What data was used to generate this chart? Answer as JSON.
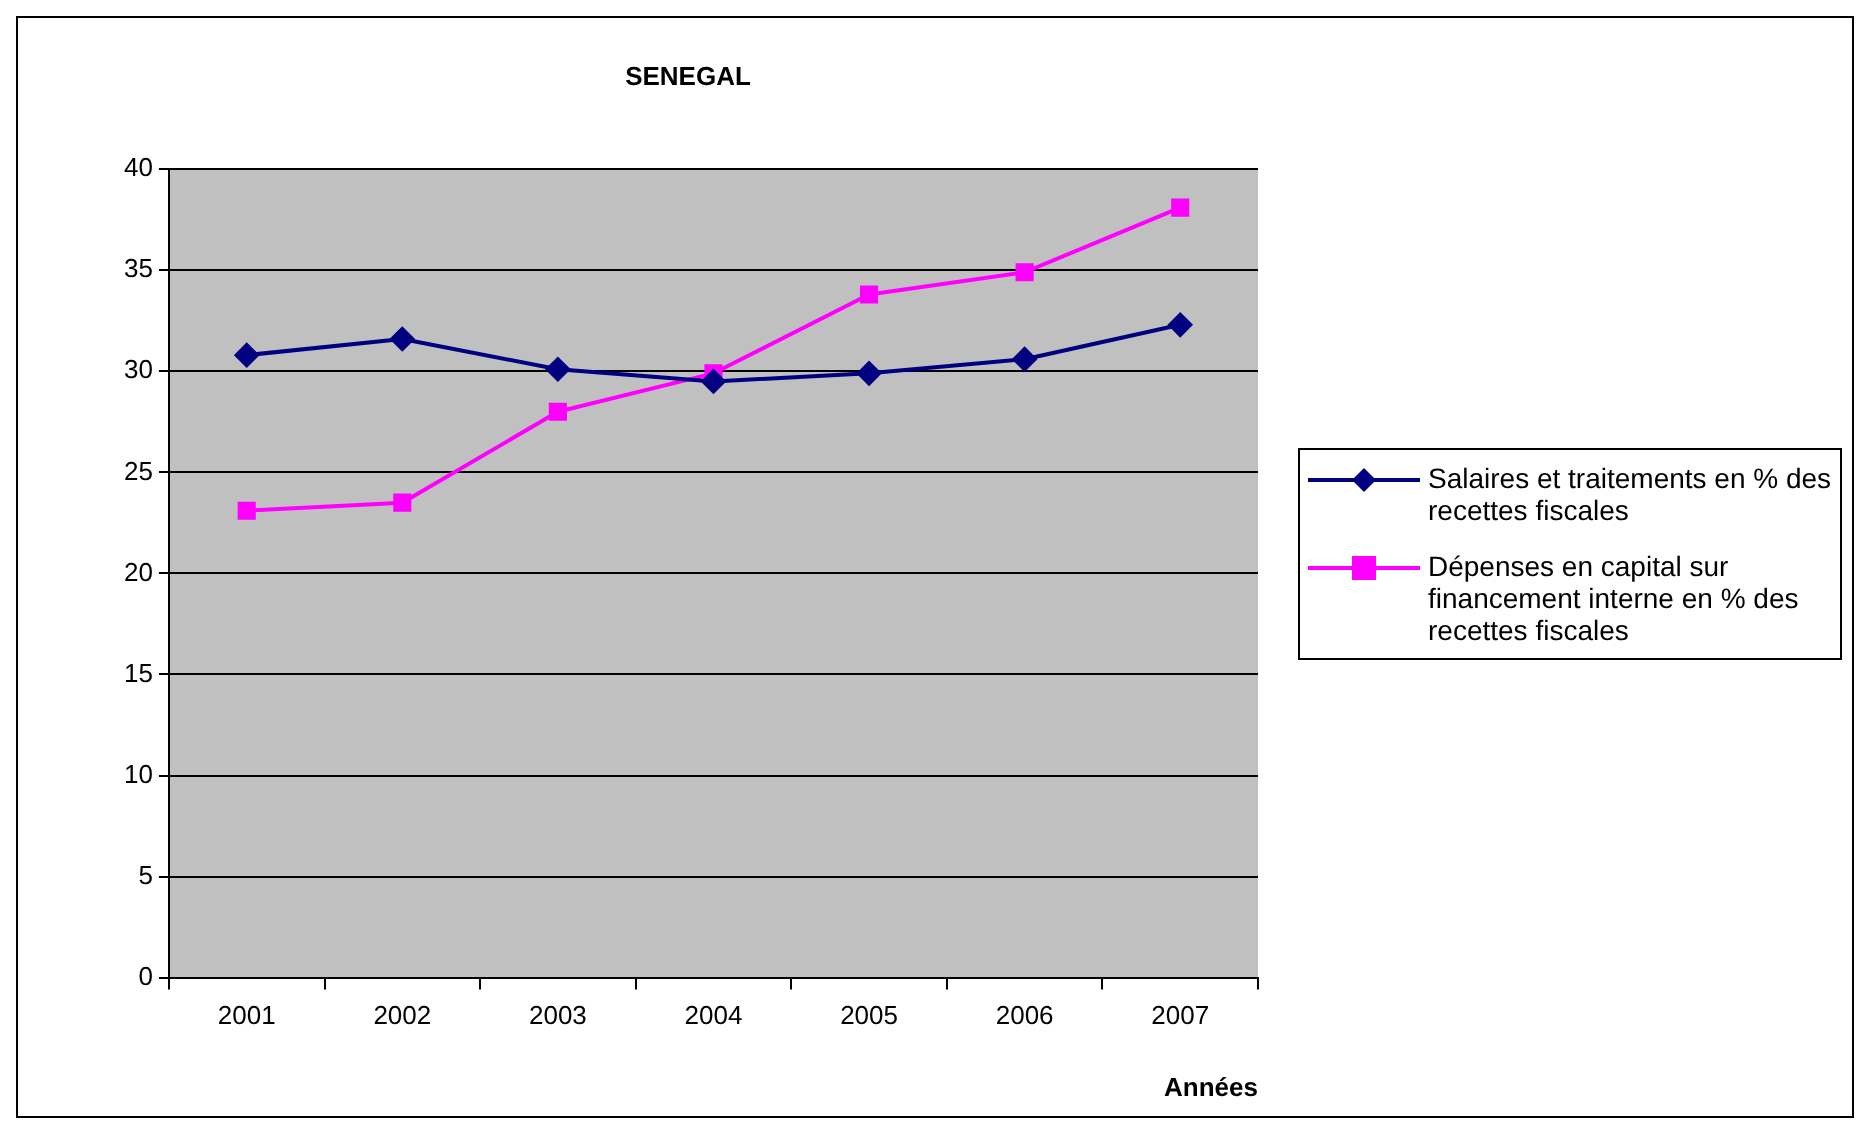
{
  "chart_data": {
    "type": "line",
    "title": "SENEGAL",
    "xlabel": "Années",
    "categories": [
      "2001",
      "2002",
      "2003",
      "2004",
      "2005",
      "2006",
      "2007"
    ],
    "series": [
      {
        "name": "Salaires et traitements en % des recettes fiscales",
        "color": "#000080",
        "marker": "diamond",
        "values": [
          30.8,
          31.6,
          30.1,
          29.5,
          29.9,
          30.6,
          32.3
        ]
      },
      {
        "name": "Dépenses en capital sur financement interne en % des recettes fiscales",
        "color": "#ff00ff",
        "marker": "square",
        "values": [
          23.1,
          23.5,
          28.0,
          29.9,
          33.8,
          34.9,
          38.1
        ]
      }
    ],
    "ylim": [
      0,
      40
    ],
    "yticks": [
      0,
      5,
      10,
      15,
      20,
      25,
      30,
      35,
      40
    ],
    "grid": "y",
    "legend": "right",
    "line_style": "solid"
  }
}
